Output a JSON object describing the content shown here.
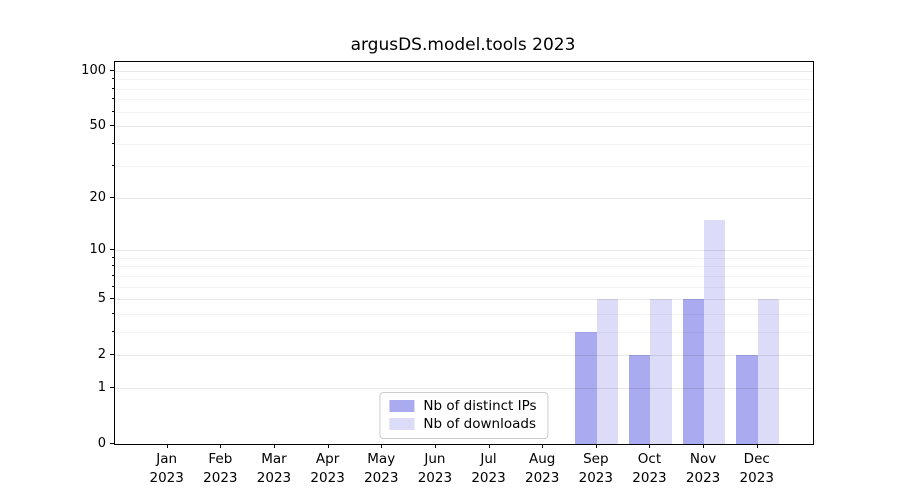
{
  "chart_data": {
    "type": "bar",
    "title": "argusDS.model.tools 2023",
    "categories": [
      "Jan 2023",
      "Feb 2023",
      "Mar 2023",
      "Apr 2023",
      "May 2023",
      "Jun 2023",
      "Jul 2023",
      "Aug 2023",
      "Sep 2023",
      "Oct 2023",
      "Nov 2023",
      "Dec 2023"
    ],
    "series": [
      {
        "name": "Nb of distinct IPs",
        "color": "#aaaaf0",
        "values": [
          0,
          0,
          0,
          0,
          0,
          0,
          0,
          0,
          3,
          2,
          5,
          2
        ]
      },
      {
        "name": "Nb of downloads",
        "color": "#dcdcf8",
        "values": [
          0,
          0,
          0,
          0,
          0,
          0,
          0,
          0,
          5,
          5,
          15,
          5
        ]
      }
    ],
    "xlabel": "",
    "ylabel": "",
    "yscale": "log1p",
    "ylim": [
      0,
      113
    ],
    "y_ticks": [
      0,
      1,
      2,
      5,
      10,
      20,
      50,
      100
    ],
    "y_minor_ticks": [
      3,
      4,
      6,
      7,
      8,
      9,
      30,
      40,
      60,
      70,
      80,
      90
    ],
    "grid": "horizontal, drawn above bars",
    "legend_position": "lower center"
  }
}
